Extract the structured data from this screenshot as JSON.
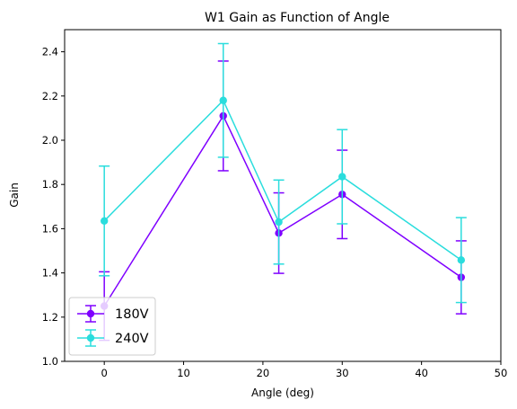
{
  "chart_data": {
    "type": "line",
    "title": "W1 Gain as Function of Angle",
    "xlabel": "Angle (deg)",
    "ylabel": "Gain",
    "xlim": [
      -5,
      50
    ],
    "ylim": [
      1.0,
      2.5
    ],
    "xticks": [
      0,
      10,
      20,
      30,
      40,
      50
    ],
    "yticks": [
      1.0,
      1.2,
      1.4,
      1.6,
      1.8,
      2.0,
      2.2,
      2.4
    ],
    "xtick_labels": [
      "0",
      "10",
      "20",
      "30",
      "40",
      "50"
    ],
    "ytick_labels": [
      "1.0",
      "1.2",
      "1.4",
      "1.6",
      "1.8",
      "2.0",
      "2.2",
      "2.4"
    ],
    "grid": false,
    "legend_position": "lower-left",
    "x": [
      0,
      15,
      22,
      30,
      45
    ],
    "series": [
      {
        "name": "180V",
        "color": "#7f00ff",
        "values": [
          1.25,
          2.11,
          1.58,
          1.755,
          1.38
        ],
        "errors": [
          0.155,
          0.248,
          0.182,
          0.2,
          0.165
        ]
      },
      {
        "name": "240V",
        "color": "#2adddd",
        "values": [
          1.635,
          2.18,
          1.63,
          1.835,
          1.458
        ],
        "errors": [
          0.248,
          0.257,
          0.19,
          0.213,
          0.192
        ]
      }
    ]
  }
}
